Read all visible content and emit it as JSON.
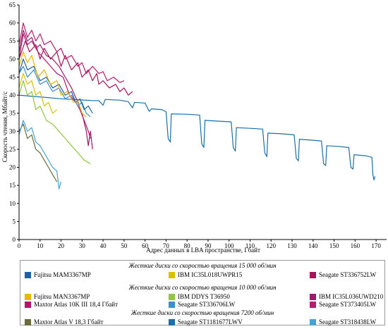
{
  "chart_data": {
    "type": "line",
    "title": "",
    "xlabel": "Адрес данных в LBA пространстве, Гбайт",
    "ylabel": "Скорость чтения, Мбайт/с",
    "xlim": [
      0,
      175
    ],
    "ylim": [
      0,
      65
    ],
    "xticks": [
      "0",
      "10",
      "20",
      "30",
      "40",
      "50",
      "60",
      "70",
      "80",
      "90",
      "100",
      "110",
      "120",
      "130",
      "140",
      "150",
      "160",
      "170"
    ],
    "xtick_values": [
      0,
      10,
      20,
      30,
      40,
      50,
      60,
      70,
      80,
      90,
      100,
      110,
      120,
      130,
      140,
      150,
      160,
      170
    ],
    "yticks": [
      "0",
      "5",
      "10",
      "15",
      "20",
      "25",
      "30",
      "35",
      "40",
      "45",
      "50",
      "55",
      "60",
      "65"
    ],
    "ytick_values": [
      0,
      5,
      10,
      15,
      20,
      25,
      30,
      35,
      40,
      45,
      50,
      55,
      60,
      65
    ],
    "grid": false,
    "legend_position": "bottom",
    "groups": [
      {
        "title": "Жесткие диски со скоростью вращения 15 000 об/мин",
        "items": [
          {
            "name": "Fujitsu MAM3367MP",
            "color": "#1f5fa6"
          },
          {
            "name": "IBM IC35L018UWPR15",
            "color": "#d8c200"
          },
          {
            "name": "Seagate ST336752LW",
            "color": "#a3145a"
          }
        ]
      },
      {
        "title": "Жесткие диски со скоростью вращения 10 000 об/мин",
        "items": [
          {
            "name": "Fujitsu MAN3367MP",
            "color": "#e6b800"
          },
          {
            "name": "IBM DDYS T36950",
            "color": "#8fc63f"
          },
          {
            "name": "IBM IC35L036UWD210",
            "color": "#9c1a6b"
          },
          {
            "name": "Maxtor Atlas 10K III 18,4 Гбайт",
            "color": "#b0186e"
          },
          {
            "name": "Seagate ST336706LW",
            "color": "#3a8fd0"
          },
          {
            "name": "Seagate ST373405LW",
            "color": "#b51d6d"
          }
        ]
      },
      {
        "title": "Жесткие диски со скоростью вращения 7200 об/мин",
        "items": [
          {
            "name": "Maxtor Atlas V 18,3 Гбайт",
            "color": "#6b6b3a"
          },
          {
            "name": "Seagate ST1181677LWV",
            "color": "#1a6fa8"
          },
          {
            "name": "Seagate ST318438LW",
            "color": "#46a3d6"
          }
        ]
      }
    ],
    "series": [
      {
        "key": "st1181677",
        "color": "#1a6fa8",
        "points": [
          [
            0,
            40
          ],
          [
            10,
            39.5
          ],
          [
            20,
            39
          ],
          [
            35,
            38.5
          ],
          [
            38,
            38.5
          ],
          [
            40,
            37.2
          ],
          [
            41,
            38.8
          ],
          [
            48,
            38.6
          ],
          [
            52,
            38.2
          ],
          [
            54,
            36.5
          ],
          [
            55,
            38
          ],
          [
            60,
            37.8
          ],
          [
            62,
            35.5
          ],
          [
            63,
            36.2
          ],
          [
            68,
            36
          ],
          [
            70,
            35.4
          ],
          [
            71,
            28
          ],
          [
            72,
            27
          ],
          [
            72.5,
            34.8
          ],
          [
            80,
            34.7
          ],
          [
            86,
            34.5
          ],
          [
            87,
            26.5
          ],
          [
            88,
            25.5
          ],
          [
            88.5,
            33
          ],
          [
            95,
            32.8
          ],
          [
            101,
            32.6
          ],
          [
            102,
            25.5
          ],
          [
            103,
            24.5
          ],
          [
            103.5,
            31
          ],
          [
            110,
            30.8
          ],
          [
            116,
            30.6
          ],
          [
            117,
            24
          ],
          [
            118,
            23
          ],
          [
            118.5,
            29.5
          ],
          [
            125,
            29.3
          ],
          [
            131,
            29
          ],
          [
            132,
            22.5
          ],
          [
            133,
            21.8
          ],
          [
            133.5,
            27.8
          ],
          [
            140,
            27.5
          ],
          [
            144,
            27.3
          ],
          [
            145,
            21
          ],
          [
            146,
            20.5
          ],
          [
            146.5,
            26
          ],
          [
            152,
            25.8
          ],
          [
            157,
            25.5
          ],
          [
            158,
            20
          ],
          [
            159,
            19.5
          ],
          [
            159.5,
            23.5
          ],
          [
            165,
            23.2
          ],
          [
            168,
            22.8
          ],
          [
            168.5,
            18
          ],
          [
            169,
            16.5
          ],
          [
            169.5,
            17.5
          ]
        ]
      },
      {
        "key": "st336752",
        "color": "#a3145a",
        "points": [
          [
            0,
            50
          ],
          [
            3,
            55
          ],
          [
            5,
            52
          ],
          [
            8,
            54
          ],
          [
            10,
            50
          ],
          [
            12,
            53
          ],
          [
            15,
            50
          ],
          [
            18,
            52
          ],
          [
            20,
            48
          ],
          [
            22,
            51
          ],
          [
            25,
            47
          ],
          [
            28,
            49
          ],
          [
            30,
            45
          ],
          [
            33,
            47
          ],
          [
            35,
            44
          ],
          [
            37,
            46
          ],
          [
            38,
            43
          ],
          [
            40,
            44
          ],
          [
            43,
            42
          ],
          [
            46,
            43
          ],
          [
            48,
            41
          ],
          [
            50,
            42
          ],
          [
            52,
            40
          ],
          [
            54,
            41
          ]
        ]
      },
      {
        "key": "st373405",
        "color": "#b51d6d",
        "points": [
          [
            0,
            54
          ],
          [
            2,
            60
          ],
          [
            4,
            56
          ],
          [
            6,
            58
          ],
          [
            8,
            55
          ],
          [
            10,
            57
          ],
          [
            12,
            54
          ],
          [
            15,
            55
          ],
          [
            18,
            52
          ],
          [
            20,
            53
          ],
          [
            22,
            50
          ],
          [
            25,
            51
          ],
          [
            28,
            48
          ],
          [
            30,
            49
          ],
          [
            32,
            46
          ],
          [
            35,
            48
          ],
          [
            38,
            46
          ],
          [
            40,
            46.5
          ],
          [
            42,
            44
          ],
          [
            45,
            45
          ],
          [
            48,
            43.5
          ],
          [
            50,
            44
          ]
        ]
      },
      {
        "key": "ic35l036",
        "color": "#9c1a6b",
        "points": [
          [
            0,
            52
          ],
          [
            2,
            58
          ],
          [
            4,
            55
          ],
          [
            6,
            56
          ],
          [
            8,
            53
          ],
          [
            10,
            54
          ],
          [
            13,
            51
          ],
          [
            16,
            50
          ],
          [
            19,
            48
          ],
          [
            22,
            45
          ],
          [
            25,
            42
          ],
          [
            28,
            38
          ],
          [
            30,
            35
          ],
          [
            32,
            30
          ],
          [
            33,
            26
          ],
          [
            34,
            30
          ],
          [
            35,
            25
          ]
        ]
      },
      {
        "key": "atlas10k",
        "color": "#b0186e",
        "points": [
          [
            0,
            50
          ],
          [
            2,
            57
          ],
          [
            4,
            54
          ],
          [
            6,
            55
          ],
          [
            9,
            52
          ],
          [
            12,
            50
          ],
          [
            15,
            48
          ],
          [
            18,
            46
          ],
          [
            21,
            45
          ],
          [
            24,
            40
          ],
          [
            27,
            38
          ],
          [
            29,
            36
          ],
          [
            31,
            33
          ],
          [
            33,
            30
          ],
          [
            34,
            28
          ]
        ]
      },
      {
        "key": "st336706",
        "color": "#3a8fd0",
        "points": [
          [
            0,
            46
          ],
          [
            2,
            48
          ],
          [
            4,
            45
          ],
          [
            7,
            47
          ],
          [
            10,
            43
          ],
          [
            13,
            44
          ],
          [
            16,
            41
          ],
          [
            19,
            42
          ],
          [
            22,
            39
          ],
          [
            25,
            40
          ],
          [
            28,
            37
          ],
          [
            30,
            38
          ],
          [
            32,
            35
          ],
          [
            34,
            34
          ]
        ]
      },
      {
        "key": "fujitsu_mam",
        "color": "#1f5fa6",
        "points": [
          [
            0,
            46
          ],
          [
            2,
            50
          ],
          [
            4,
            47
          ],
          [
            7,
            48
          ],
          [
            10,
            44
          ],
          [
            13,
            45
          ],
          [
            16,
            42
          ],
          [
            19,
            43
          ],
          [
            22,
            40
          ],
          [
            25,
            41
          ],
          [
            27,
            38
          ],
          [
            29,
            39
          ],
          [
            31,
            36
          ],
          [
            33,
            37
          ],
          [
            35,
            35
          ]
        ]
      },
      {
        "key": "fujitsu_man",
        "color": "#e6b800",
        "points": [
          [
            0,
            48
          ],
          [
            2,
            52
          ],
          [
            4,
            49
          ],
          [
            6,
            51
          ],
          [
            9,
            45
          ],
          [
            12,
            47
          ],
          [
            15,
            43
          ],
          [
            18,
            44
          ],
          [
            20,
            40
          ],
          [
            23,
            41
          ],
          [
            26,
            38
          ],
          [
            28,
            38.5
          ],
          [
            30,
            35
          ],
          [
            32,
            34
          ]
        ]
      },
      {
        "key": "ic35l018",
        "color": "#d8c200",
        "points": [
          [
            0,
            42
          ],
          [
            2,
            46
          ],
          [
            4,
            43
          ],
          [
            6,
            44
          ],
          [
            8,
            40
          ],
          [
            10,
            41
          ],
          [
            12,
            37
          ],
          [
            14,
            38
          ],
          [
            16,
            35
          ],
          [
            18,
            36
          ]
        ]
      },
      {
        "key": "ddys",
        "color": "#8fc63f",
        "points": [
          [
            0,
            40
          ],
          [
            2,
            44
          ],
          [
            4,
            40
          ],
          [
            6,
            41
          ],
          [
            8,
            36
          ],
          [
            10,
            37
          ],
          [
            13,
            33
          ],
          [
            16,
            32
          ],
          [
            19,
            30
          ],
          [
            22,
            28
          ],
          [
            25,
            26
          ],
          [
            28,
            24
          ],
          [
            31,
            22
          ],
          [
            34,
            21
          ]
        ]
      },
      {
        "key": "atlasV",
        "color": "#6b6b3a",
        "points": [
          [
            0,
            30
          ],
          [
            2,
            32
          ],
          [
            4,
            28
          ],
          [
            6,
            29
          ],
          [
            8,
            25
          ],
          [
            10,
            24
          ],
          [
            12,
            22
          ],
          [
            14,
            20
          ],
          [
            16,
            18
          ],
          [
            18,
            16
          ]
        ]
      },
      {
        "key": "st318438",
        "color": "#46a3d6",
        "points": [
          [
            0,
            29
          ],
          [
            2,
            33
          ],
          [
            4,
            30
          ],
          [
            6,
            31
          ],
          [
            8,
            27
          ],
          [
            10,
            26
          ],
          [
            12,
            24
          ],
          [
            14,
            22
          ],
          [
            16,
            20
          ],
          [
            18,
            19
          ],
          [
            19,
            14
          ],
          [
            20,
            16
          ]
        ]
      }
    ]
  }
}
